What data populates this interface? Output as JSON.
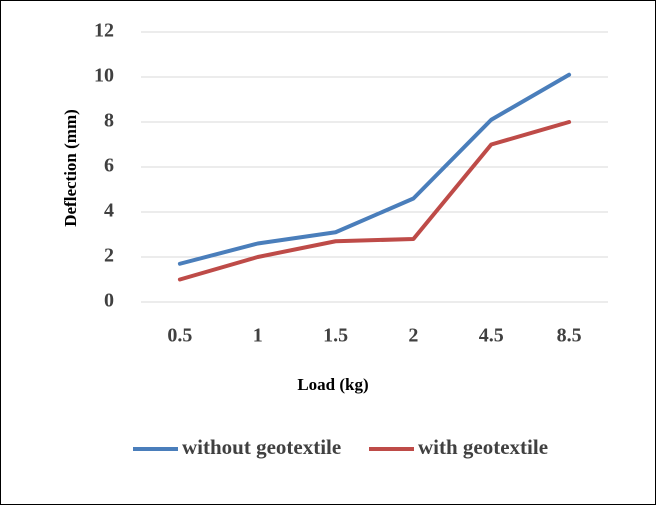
{
  "chart_data": {
    "type": "line",
    "x_label": "Load (kg)",
    "y_label": "Deflection (mm)",
    "categories": [
      "0.5",
      "1",
      "1.5",
      "2",
      "4.5",
      "8.5"
    ],
    "series": [
      {
        "name": "without geotextile",
        "color": "#4a7ebb",
        "values": [
          1.7,
          2.6,
          3.1,
          4.6,
          8.1,
          10.1
        ]
      },
      {
        "name": "with geotextile",
        "color": "#be4b48",
        "values": [
          1.0,
          2.0,
          2.7,
          2.8,
          7.0,
          8.0
        ]
      }
    ],
    "ylim": [
      0,
      12
    ],
    "yticks": [
      0,
      2,
      4,
      6,
      8,
      10,
      12
    ],
    "grid": true,
    "legend": "bottom"
  }
}
